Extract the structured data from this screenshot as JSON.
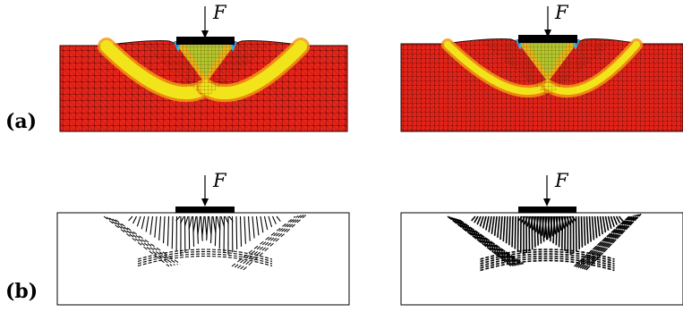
{
  "figure": {
    "row_labels": [
      "(a)",
      "(b)"
    ],
    "force_label": "F",
    "colors": {
      "mesh_base": "#e8251a",
      "mesh_line": "#2a0000",
      "band_yellow": "#f2e41a",
      "band_orange": "#f39a12",
      "band_green": "#8fd23a",
      "corner_cyan": "#33b7e6",
      "corner_blue": "#1a4cd6",
      "plate": "#000000",
      "strut": "#000000",
      "background": "#ffffff"
    }
  }
}
